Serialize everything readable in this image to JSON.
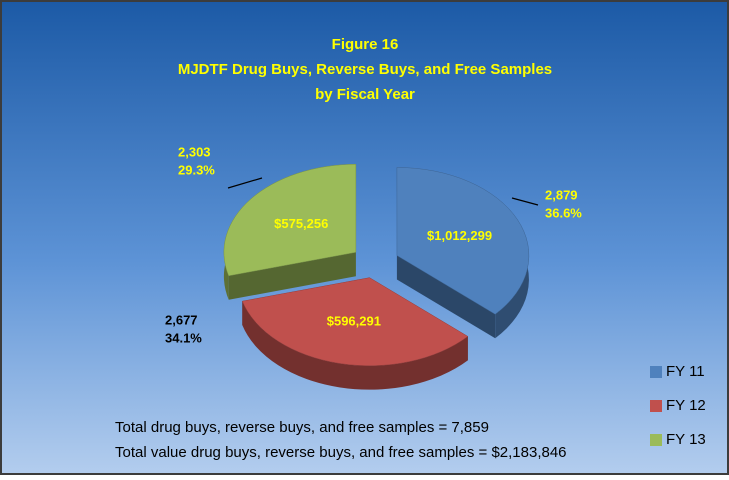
{
  "chart_data": {
    "type": "pie",
    "title": "Figure 16",
    "subtitle": [
      "MJDTF Drug Buys, Reverse Buys, and Free Samples",
      "by Fiscal Year"
    ],
    "categories": [
      "FY 11",
      "FY 12",
      "FY 13"
    ],
    "values": [
      2879,
      2677,
      2303
    ],
    "value_labels": [
      "2,879",
      "2,677",
      "2,303"
    ],
    "percentages": [
      36.6,
      34.1,
      29.3
    ],
    "percentage_labels": [
      "36.6%",
      "34.1%",
      "29.3%"
    ],
    "amounts": [
      1012299,
      596291,
      575256
    ],
    "amount_labels": [
      "$1,012,299",
      "$596,291",
      "$575,256"
    ],
    "colors": [
      "#4f81bd",
      "#c0504d",
      "#9bbb59"
    ],
    "legend": "bottom-right",
    "notes": [
      "Total drug buys, reverse buys, and free samples = 7,859",
      "Total value drug buys, reverse buys, and free samples = $2,183,846"
    ]
  }
}
